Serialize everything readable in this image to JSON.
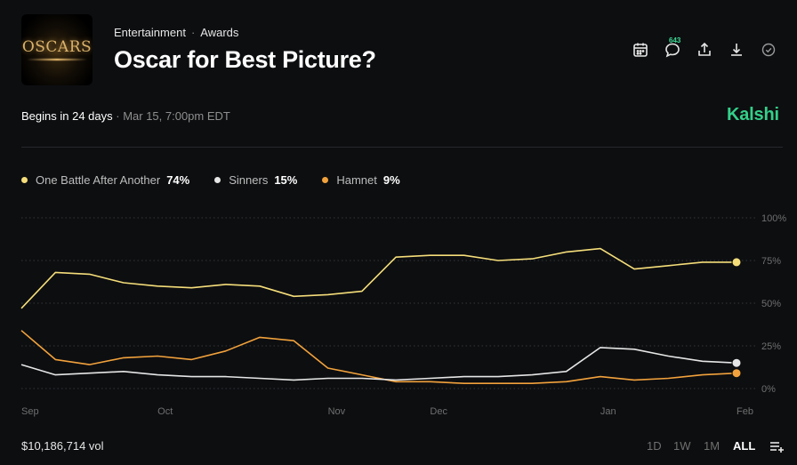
{
  "header": {
    "breadcrumbs": [
      "Entertainment",
      "Awards"
    ],
    "title": "Oscar for Best Picture?",
    "thumbnail_text": "OSCARS",
    "comment_count": "643"
  },
  "toolbar_icons": [
    "calendar-icon",
    "comment-icon",
    "share-icon",
    "download-icon",
    "check-circle-icon"
  ],
  "meta": {
    "begins": "Begins in 24 days",
    "date": "Mar 15, 7:00pm EDT",
    "brand": "Kalshi"
  },
  "legend": [
    {
      "name": "One Battle After Another",
      "pct": "74%"
    },
    {
      "name": "Sinners",
      "pct": "15%"
    },
    {
      "name": "Hamnet",
      "pct": "9%"
    }
  ],
  "colors": {
    "one_battle": "#f5de7a",
    "sinners": "#e6e6e6",
    "hamnet": "#f2a23c",
    "brand": "#33d08a",
    "background": "#0d0e10"
  },
  "chart_data": {
    "type": "line",
    "x": [
      "Sep",
      "",
      "",
      "",
      "Oct",
      "",
      "",
      "",
      "",
      "Nov",
      "",
      "",
      "Dec",
      "",
      "",
      "",
      "",
      "Jan",
      "",
      "",
      "",
      "Feb"
    ],
    "x_ticks": [
      "Sep",
      "Oct",
      "Dec",
      "Jan",
      "Feb"
    ],
    "y_ticks": [
      "0%",
      "25%",
      "50%",
      "75%",
      "100%"
    ],
    "ylim": [
      0,
      100
    ],
    "series": [
      {
        "name": "One Battle After Another",
        "values": [
          47,
          68,
          67,
          62,
          60,
          59,
          61,
          60,
          54,
          55,
          57,
          77,
          78,
          78,
          75,
          76,
          80,
          82,
          70,
          72,
          74,
          74
        ]
      },
      {
        "name": "Sinners",
        "values": [
          14,
          8,
          9,
          10,
          8,
          7,
          7,
          6,
          5,
          6,
          6,
          5,
          6,
          7,
          7,
          8,
          10,
          24,
          23,
          19,
          16,
          15
        ]
      },
      {
        "name": "Hamnet",
        "values": [
          34,
          17,
          14,
          18,
          19,
          17,
          22,
          30,
          28,
          12,
          8,
          4,
          4,
          3,
          3,
          3,
          4,
          7,
          5,
          6,
          8,
          9
        ]
      }
    ]
  },
  "footer": {
    "volume": "$10,186,714 vol",
    "ranges": [
      "1D",
      "1W",
      "1M",
      "ALL"
    ],
    "active_range": "ALL"
  }
}
